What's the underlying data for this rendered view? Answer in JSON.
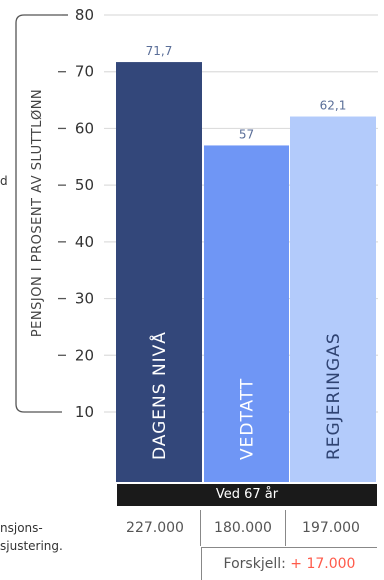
{
  "chart_data": {
    "type": "bar",
    "categories": [
      "DAGENS NIVÅ",
      "VEDTATT",
      "REGJERINGAS"
    ],
    "values": [
      71.7,
      57,
      62.1
    ],
    "value_labels": [
      "71,7",
      "57",
      "62,1"
    ],
    "colors": [
      "#33477a",
      "#6f96f5",
      "#b3cbfb"
    ],
    "label_colors": [
      "#5a6e98",
      "#5a6e98",
      "#5a6e98"
    ],
    "yticks": [
      10,
      20,
      30,
      40,
      50,
      60,
      70,
      80
    ],
    "ylim": [
      10,
      80
    ],
    "ylabel": "PENSJON I PROSENT AV SLUTTLØNN",
    "xlabel": "Ved 67 år",
    "grid": true,
    "legend": "none"
  },
  "amounts": [
    "227.000",
    "180.000",
    "197.000"
  ],
  "difference": {
    "label": "Forskjell:",
    "value": "+ 17.000"
  },
  "side_notes": {
    "left_mid": "d",
    "left_bottom_1": "nsjons-",
    "left_bottom_2": "sjustering."
  }
}
